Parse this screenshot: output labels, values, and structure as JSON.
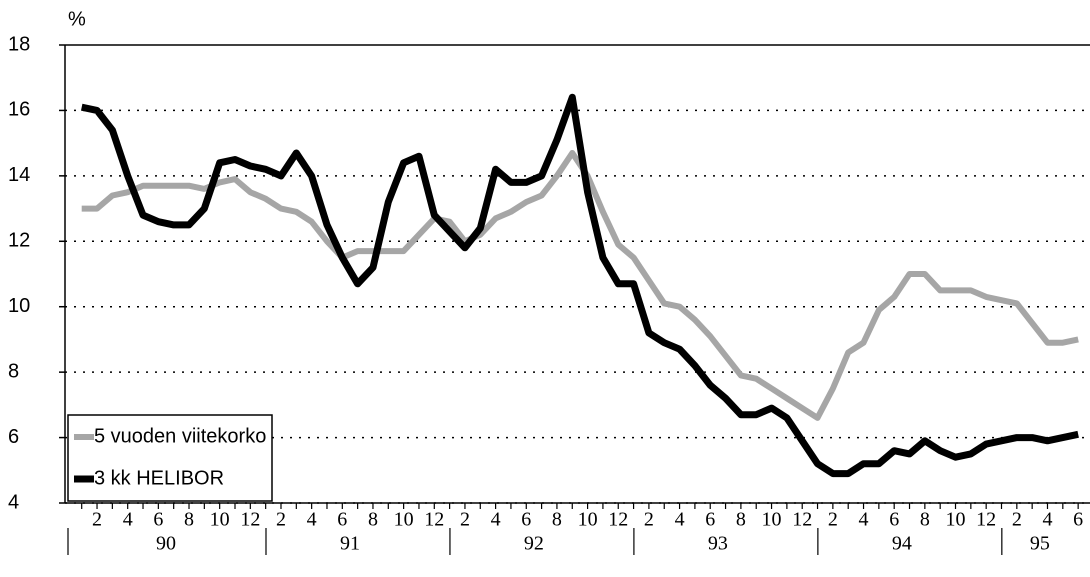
{
  "chart_data": {
    "type": "line",
    "y_axis_label": "%",
    "categories": [
      null,
      "2",
      null,
      "4",
      null,
      "6",
      null,
      "8",
      null,
      "10",
      null,
      "12",
      null,
      "2",
      null,
      "4",
      null,
      "6",
      null,
      "8",
      null,
      "10",
      null,
      "12",
      null,
      "2",
      null,
      "4",
      null,
      "6",
      null,
      "8",
      null,
      "10",
      null,
      "12",
      null,
      "2",
      null,
      "4",
      null,
      "6",
      null,
      "8",
      null,
      "10",
      null,
      "12",
      null,
      "2",
      null,
      "4",
      null,
      "6",
      null,
      "8",
      null,
      "10",
      null,
      "12",
      null,
      "2",
      null,
      "4",
      null,
      "6"
    ],
    "year_groups": [
      {
        "label": "90",
        "months": 12
      },
      {
        "label": "91",
        "months": 12
      },
      {
        "label": "92",
        "months": 12
      },
      {
        "label": "93",
        "months": 12
      },
      {
        "label": "94",
        "months": 12
      },
      {
        "label": "95",
        "months": 6
      }
    ],
    "series": [
      {
        "name": "5 vuoden viitekorko",
        "color": "#a6a6a6",
        "values": [
          13.0,
          13.0,
          13.4,
          13.5,
          13.7,
          13.7,
          13.7,
          13.7,
          13.6,
          13.8,
          13.9,
          13.5,
          13.3,
          13.0,
          12.9,
          12.6,
          12.0,
          11.5,
          11.7,
          11.7,
          11.7,
          11.7,
          12.2,
          12.7,
          12.6,
          12.0,
          12.2,
          12.7,
          12.9,
          13.2,
          13.4,
          14.0,
          14.7,
          14.0,
          12.9,
          11.9,
          11.5,
          10.8,
          10.1,
          10.0,
          9.6,
          9.1,
          8.5,
          7.9,
          7.8,
          7.5,
          7.2,
          6.9,
          6.6,
          7.5,
          8.6,
          8.9,
          9.9,
          10.3,
          11.0,
          11.0,
          10.5,
          10.5,
          10.5,
          10.3,
          10.2,
          10.1,
          9.5,
          8.9,
          8.9,
          9.0
        ]
      },
      {
        "name": "3 kk HELIBOR",
        "color": "#000000",
        "values": [
          16.1,
          16.0,
          15.4,
          14.0,
          12.8,
          12.6,
          12.5,
          12.5,
          13.0,
          14.4,
          14.5,
          14.3,
          14.2,
          14.0,
          14.7,
          14.0,
          12.5,
          11.5,
          10.7,
          11.2,
          13.2,
          14.4,
          14.6,
          12.8,
          12.3,
          11.8,
          12.4,
          14.2,
          13.8,
          13.8,
          14.0,
          15.1,
          16.4,
          13.5,
          11.5,
          10.7,
          10.7,
          9.2,
          8.9,
          8.7,
          8.2,
          7.6,
          7.2,
          6.7,
          6.7,
          6.9,
          6.6,
          5.9,
          5.2,
          4.9,
          4.9,
          5.2,
          5.2,
          5.6,
          5.5,
          5.9,
          5.6,
          5.4,
          5.5,
          5.8,
          5.9,
          6.0,
          6.0,
          5.9,
          6.0,
          6.1
        ]
      }
    ],
    "ylim": [
      4,
      18
    ],
    "yticks": [
      4,
      6,
      8,
      10,
      12,
      14,
      16,
      18
    ],
    "grid": true,
    "legend": "lower left"
  }
}
